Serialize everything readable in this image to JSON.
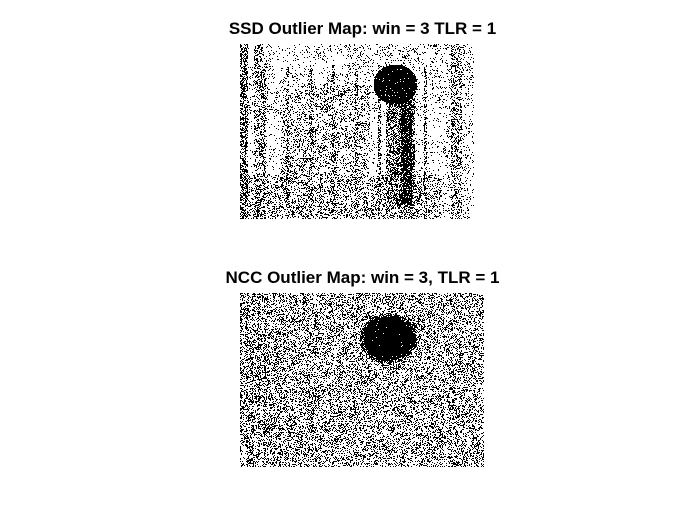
{
  "figure": {
    "panels": [
      {
        "title": "SSD Outlier Map: win = 3 TLR = 1",
        "description_hidden": true
      },
      {
        "title": "NCC Outlier Map: win = 3, TLR = 1"
      }
    ]
  },
  "colors": {
    "background": "#ffffff",
    "outlier": "#000000",
    "inlier": "#ffffff"
  }
}
